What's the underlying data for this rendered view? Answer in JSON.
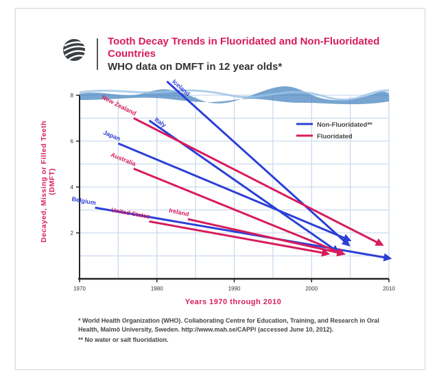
{
  "header": {
    "title": "Tooth Decay Trends in Fluoridated and Non-Fluoridated Countries",
    "subtitle": "WHO data on DMFT in 12 year olds*"
  },
  "footnotes": {
    "note1": "* World Health Organization (WHO). Collaborating Centre for Education, Training, and Research in Oral Health, Malmö University, Sweden. http://www.mah.se/CAPP/ (accessed June 10, 2012).",
    "note2": "** No water or salt fluoridation."
  },
  "colors": {
    "non_fluoridated": "#2b3fd6",
    "fluoridated": "#d81b5a",
    "grid": "#c9d9ee"
  },
  "chart_data": {
    "type": "line",
    "title": "Tooth Decay Trends in Fluoridated and Non-Fluoridated Countries",
    "xlabel": "Years 1970 through 2010",
    "ylabel": "Decayed, Missing or Filled Teeth (DMFT)",
    "xlim": [
      1970,
      2010
    ],
    "ylim": [
      0,
      8
    ],
    "xticks": [
      "1970",
      "1980",
      "1990",
      "2000",
      "2010"
    ],
    "yticks": [
      "2",
      "4",
      "6",
      "8"
    ],
    "grid": true,
    "legend_position": "top-right",
    "legend": [
      {
        "label": "Non-Fluoridated**",
        "group": "non_fluoridated"
      },
      {
        "label": "Fluoridated",
        "group": "fluoridated"
      }
    ],
    "series": [
      {
        "name": "Iceland",
        "group": "non_fluoridated",
        "x": [
          1981.3,
          2004.7
        ],
        "y": [
          8.6,
          1.5
        ]
      },
      {
        "name": "Italy",
        "group": "non_fluoridated",
        "x": [
          1979,
          2003.3
        ],
        "y": [
          6.9,
          1.2
        ]
      },
      {
        "name": "Japan",
        "group": "non_fluoridated",
        "x": [
          1975,
          2004.8
        ],
        "y": [
          5.9,
          1.7
        ]
      },
      {
        "name": "Belgium",
        "group": "non_fluoridated",
        "x": [
          1972,
          2010
        ],
        "y": [
          3.1,
          0.9
        ]
      },
      {
        "name": "New Zealand",
        "group": "fluoridated",
        "x": [
          1977,
          2009
        ],
        "y": [
          7.0,
          1.5
        ]
      },
      {
        "name": "Australia",
        "group": "fluoridated",
        "x": [
          1977,
          2004
        ],
        "y": [
          4.8,
          1.1
        ]
      },
      {
        "name": "Ireland",
        "group": "fluoridated",
        "x": [
          1984,
          2004
        ],
        "y": [
          2.6,
          1.1
        ]
      },
      {
        "name": "United States",
        "group": "fluoridated",
        "x": [
          1979,
          2002
        ],
        "y": [
          2.5,
          1.1
        ]
      }
    ]
  }
}
